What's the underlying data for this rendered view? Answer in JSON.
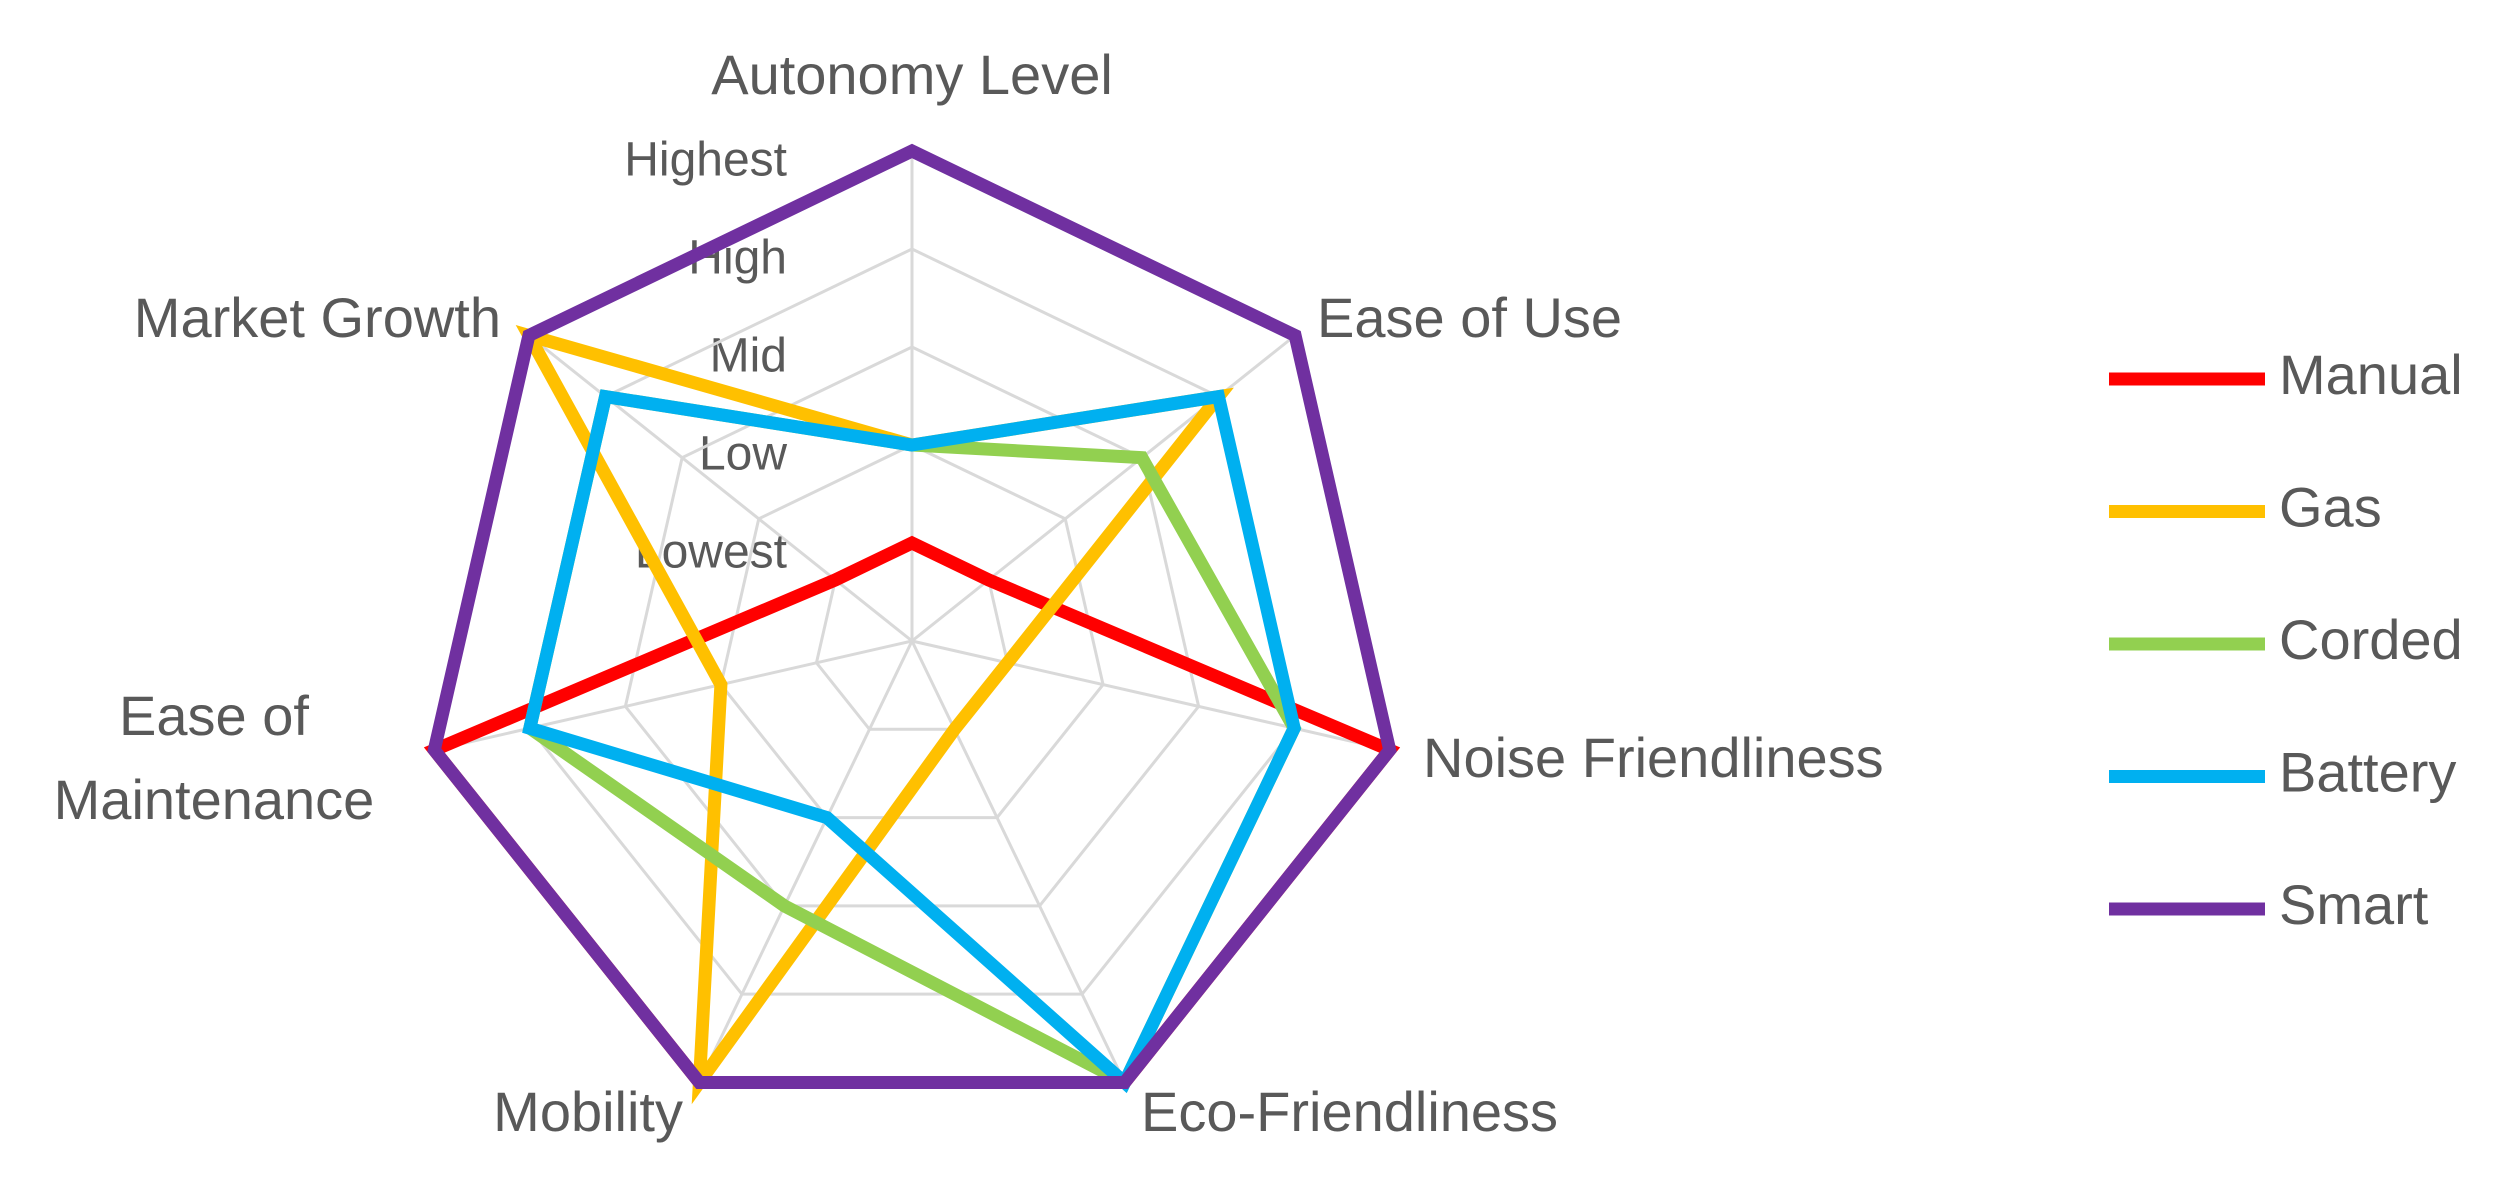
{
  "chart_data": {
    "type": "radar",
    "categories": [
      "Autonomy Level",
      "Ease of Use",
      "Noise Friendliness",
      "Eco-Friendliness",
      "Mobility",
      "Ease of Maintenance",
      "Market Growth"
    ],
    "rlim": [
      0,
      5
    ],
    "rticks": [
      {
        "value": 1,
        "label": "Lowest"
      },
      {
        "value": 2,
        "label": "Low"
      },
      {
        "value": 3,
        "label": "Mid"
      },
      {
        "value": 4,
        "label": "High"
      },
      {
        "value": 5,
        "label": "Highest"
      }
    ],
    "grid": true,
    "legend": "right",
    "series": [
      {
        "name": "Manual",
        "color": "#ff0000",
        "values": [
          1,
          1,
          5,
          5,
          5,
          5,
          1
        ]
      },
      {
        "name": "Gas",
        "color": "#ffc000",
        "values": [
          2,
          4,
          1,
          1,
          5,
          2,
          5
        ]
      },
      {
        "name": "Corded",
        "color": "#92d050",
        "values": [
          2,
          3,
          4,
          5,
          3,
          4,
          4
        ]
      },
      {
        "name": "Battery",
        "color": "#00b0f0",
        "values": [
          2,
          4,
          4,
          5,
          2,
          4,
          4
        ]
      },
      {
        "name": "Smart",
        "color": "#7030a0",
        "values": [
          5,
          5,
          5,
          5,
          5,
          5,
          5
        ]
      }
    ]
  }
}
